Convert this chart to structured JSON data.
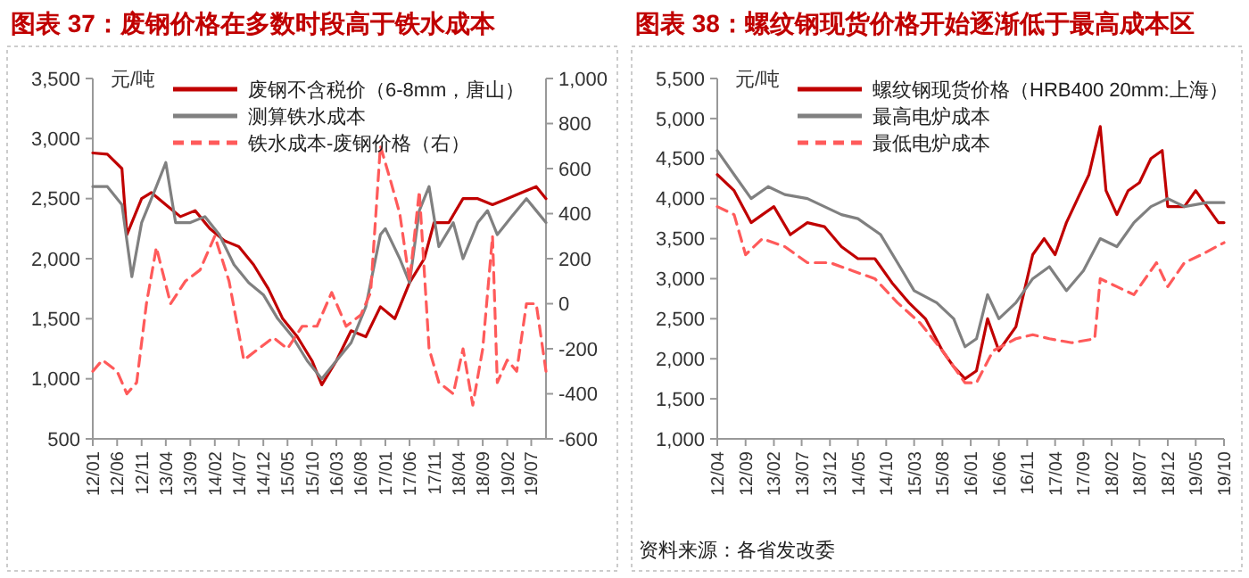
{
  "chart_data": [
    {
      "type": "line",
      "title": "图表 37：废钢价格在多数时段高于铁水成本",
      "ylabel": "元/吨",
      "legend": "top",
      "grid": false,
      "xlim": [
        "2012-01",
        "2019-10"
      ],
      "xticks": [
        {
          "value": "2012-01",
          "label": "12/01"
        },
        {
          "value": "2012-06",
          "label": "12/06"
        },
        {
          "value": "2012-11",
          "label": "12/11"
        },
        {
          "value": "2013-04",
          "label": "13/04"
        },
        {
          "value": "2013-09",
          "label": "13/09"
        },
        {
          "value": "2014-02",
          "label": "14/02"
        },
        {
          "value": "2014-07",
          "label": "14/07"
        },
        {
          "value": "2014-12",
          "label": "14/12"
        },
        {
          "value": "2015-05",
          "label": "15/05"
        },
        {
          "value": "2015-10",
          "label": "15/10"
        },
        {
          "value": "2016-03",
          "label": "16/03"
        },
        {
          "value": "2016-08",
          "label": "16/08"
        },
        {
          "value": "2017-01",
          "label": "17/01"
        },
        {
          "value": "2017-06",
          "label": "17/06"
        },
        {
          "value": "2017-11",
          "label": "17/11"
        },
        {
          "value": "2018-04",
          "label": "18/04"
        },
        {
          "value": "2018-09",
          "label": "18/09"
        },
        {
          "value": "2019-02",
          "label": "19/02"
        },
        {
          "value": "2019-07",
          "label": "19/07"
        }
      ],
      "ylim": [
        500,
        3500
      ],
      "yticks": [
        500,
        {
          "value": 1000,
          "label": "1,000"
        },
        {
          "value": 1500,
          "label": "1,500"
        },
        {
          "value": 2000,
          "label": "2,000"
        },
        {
          "value": 2500,
          "label": "2,500"
        },
        {
          "value": 3000,
          "label": "3,000"
        },
        {
          "value": 3500,
          "label": "3,500"
        }
      ],
      "y2lim": [
        -600,
        1000
      ],
      "y2ticks": [
        -600,
        -400,
        -200,
        0,
        200,
        400,
        600,
        800,
        {
          "value": 1000,
          "label": "1,000"
        }
      ],
      "series": [
        {
          "name": "废钢不含税价（6-8mm，唐山）",
          "color": "#c00000",
          "line_style": "solid",
          "x": [
            "2012-01",
            "2012-04",
            "2012-07",
            "2012-08",
            "2012-11",
            "2013-01",
            "2013-04",
            "2013-07",
            "2013-10",
            "2014-01",
            "2014-04",
            "2014-07",
            "2014-10",
            "2015-01",
            "2015-04",
            "2015-07",
            "2015-10",
            "2015-12",
            "2016-03",
            "2016-06",
            "2016-09",
            "2016-12",
            "2017-03",
            "2017-06",
            "2017-09",
            "2017-11",
            "2018-02",
            "2018-05",
            "2018-08",
            "2018-11",
            "2019-02",
            "2019-05",
            "2019-08",
            "2019-10"
          ],
          "values": [
            2880,
            2870,
            2750,
            2200,
            2500,
            2550,
            2450,
            2350,
            2400,
            2250,
            2150,
            2100,
            1950,
            1750,
            1500,
            1350,
            1150,
            950,
            1150,
            1400,
            1350,
            1600,
            1500,
            1800,
            2000,
            2300,
            2300,
            2500,
            2500,
            2450,
            2500,
            2550,
            2600,
            2500
          ]
        },
        {
          "name": "测算铁水成本",
          "color": "#808080",
          "line_style": "solid",
          "x": [
            "2012-01",
            "2012-04",
            "2012-07",
            "2012-09",
            "2012-11",
            "2013-02",
            "2013-04",
            "2013-06",
            "2013-09",
            "2013-12",
            "2014-03",
            "2014-06",
            "2014-09",
            "2014-12",
            "2015-03",
            "2015-06",
            "2015-09",
            "2015-12",
            "2016-03",
            "2016-06",
            "2016-09",
            "2016-12",
            "2017-01",
            "2017-04",
            "2017-06",
            "2017-08",
            "2017-10",
            "2017-12",
            "2018-03",
            "2018-05",
            "2018-08",
            "2018-10",
            "2018-12",
            "2019-03",
            "2019-06",
            "2019-08",
            "2019-10"
          ],
          "values": [
            2600,
            2600,
            2450,
            1850,
            2300,
            2600,
            2800,
            2300,
            2300,
            2350,
            2200,
            1950,
            1800,
            1700,
            1500,
            1350,
            1150,
            1000,
            1150,
            1300,
            1600,
            2200,
            2250,
            2000,
            1800,
            2400,
            2600,
            2100,
            2300,
            2000,
            2300,
            2400,
            2200,
            2350,
            2500,
            2400,
            2300
          ]
        },
        {
          "name": "铁水成本-废钢价格（右）",
          "color": "#ff5a5a",
          "line_style": "dashed",
          "axis": "y2",
          "x": [
            "2012-01",
            "2012-03",
            "2012-06",
            "2012-08",
            "2012-10",
            "2012-12",
            "2013-02",
            "2013-05",
            "2013-08",
            "2013-11",
            "2014-02",
            "2014-05",
            "2014-08",
            "2014-11",
            "2015-02",
            "2015-05",
            "2015-08",
            "2015-11",
            "2016-02",
            "2016-05",
            "2016-08",
            "2016-10",
            "2016-12",
            "2017-02",
            "2017-04",
            "2017-06",
            "2017-08",
            "2017-10",
            "2017-12",
            "2018-03",
            "2018-05",
            "2018-07",
            "2018-09",
            "2018-11",
            "2018-12",
            "2019-02",
            "2019-04",
            "2019-06",
            "2019-08",
            "2019-10"
          ],
          "values": [
            -300,
            -250,
            -300,
            -400,
            -350,
            0,
            250,
            0,
            100,
            150,
            300,
            100,
            -250,
            -200,
            -150,
            -200,
            -100,
            -100,
            50,
            -100,
            -50,
            50,
            700,
            550,
            400,
            100,
            500,
            -200,
            -350,
            -400,
            -200,
            -450,
            -200,
            300,
            -350,
            -250,
            -300,
            0,
            0,
            -300
          ]
        }
      ]
    },
    {
      "type": "line",
      "title": "图表 38：螺纹钢现货价格开始逐渐低于最高成本区",
      "ylabel": "元/吨",
      "legend": "top",
      "grid": false,
      "xlim": [
        "2012-04",
        "2019-10"
      ],
      "xticks": [
        {
          "value": "2012-04",
          "label": "12/04"
        },
        {
          "value": "2012-09",
          "label": "12/09"
        },
        {
          "value": "2013-02",
          "label": "13/02"
        },
        {
          "value": "2013-07",
          "label": "13/07"
        },
        {
          "value": "2013-12",
          "label": "13/12"
        },
        {
          "value": "2014-05",
          "label": "14/05"
        },
        {
          "value": "2014-10",
          "label": "14/10"
        },
        {
          "value": "2015-03",
          "label": "15/03"
        },
        {
          "value": "2015-08",
          "label": "15/08"
        },
        {
          "value": "2016-01",
          "label": "16/01"
        },
        {
          "value": "2016-06",
          "label": "16/06"
        },
        {
          "value": "2016-11",
          "label": "16/11"
        },
        {
          "value": "2017-04",
          "label": "17/04"
        },
        {
          "value": "2017-09",
          "label": "17/09"
        },
        {
          "value": "2018-02",
          "label": "18/02"
        },
        {
          "value": "2018-07",
          "label": "18/07"
        },
        {
          "value": "2018-12",
          "label": "18/12"
        },
        {
          "value": "2019-05",
          "label": "19/05"
        },
        {
          "value": "2019-10",
          "label": "19/10"
        }
      ],
      "ylim": [
        1000,
        5500
      ],
      "yticks": [
        {
          "value": 1000,
          "label": "1,000"
        },
        {
          "value": 1500,
          "label": "1,500"
        },
        {
          "value": 2000,
          "label": "2,000"
        },
        {
          "value": 2500,
          "label": "2,500"
        },
        {
          "value": 3000,
          "label": "3,000"
        },
        {
          "value": 3500,
          "label": "3,500"
        },
        {
          "value": 4000,
          "label": "4,000"
        },
        {
          "value": 4500,
          "label": "4,500"
        },
        {
          "value": 5000,
          "label": "5,000"
        },
        {
          "value": 5500,
          "label": "5,500"
        }
      ],
      "annotations": [
        "资料来源：各省发改委"
      ],
      "series": [
        {
          "name": "螺纹钢现货价格（HRB400 20mm:上海）",
          "color": "#c00000",
          "line_style": "solid",
          "x": [
            "2012-04",
            "2012-07",
            "2012-10",
            "2012-12",
            "2013-02",
            "2013-05",
            "2013-08",
            "2013-11",
            "2014-02",
            "2014-05",
            "2014-08",
            "2014-11",
            "2015-02",
            "2015-05",
            "2015-08",
            "2015-10",
            "2015-12",
            "2016-02",
            "2016-04",
            "2016-06",
            "2016-09",
            "2016-11",
            "2016-12",
            "2017-02",
            "2017-04",
            "2017-06",
            "2017-08",
            "2017-10",
            "2017-12",
            "2018-01",
            "2018-03",
            "2018-05",
            "2018-07",
            "2018-09",
            "2018-11",
            "2018-12",
            "2019-03",
            "2019-05",
            "2019-07",
            "2019-09",
            "2019-10"
          ],
          "values": [
            4300,
            4100,
            3700,
            3800,
            3900,
            3550,
            3700,
            3650,
            3400,
            3250,
            3250,
            2950,
            2700,
            2500,
            2100,
            1900,
            1750,
            1850,
            2500,
            2100,
            2400,
            3000,
            3300,
            3500,
            3300,
            3700,
            4000,
            4300,
            4900,
            4100,
            3800,
            4100,
            4200,
            4500,
            4600,
            3900,
            3900,
            4100,
            3900,
            3700,
            3700
          ]
        },
        {
          "name": "最高电炉成本",
          "color": "#808080",
          "line_style": "solid",
          "x": [
            "2012-04",
            "2012-07",
            "2012-10",
            "2013-01",
            "2013-04",
            "2013-08",
            "2013-11",
            "2014-02",
            "2014-05",
            "2014-09",
            "2014-12",
            "2015-03",
            "2015-07",
            "2015-10",
            "2015-12",
            "2016-02",
            "2016-04",
            "2016-06",
            "2016-09",
            "2016-12",
            "2017-03",
            "2017-06",
            "2017-09",
            "2017-12",
            "2018-03",
            "2018-06",
            "2018-09",
            "2018-12",
            "2019-03",
            "2019-07",
            "2019-10"
          ],
          "values": [
            4600,
            4300,
            4000,
            4150,
            4050,
            4000,
            3900,
            3800,
            3750,
            3550,
            3200,
            2850,
            2700,
            2500,
            2150,
            2250,
            2800,
            2500,
            2700,
            3000,
            3150,
            2850,
            3100,
            3500,
            3400,
            3700,
            3900,
            4000,
            3900,
            3950,
            3950
          ]
        },
        {
          "name": "最低电炉成本",
          "color": "#ff5a5a",
          "line_style": "dashed",
          "x": [
            "2012-04",
            "2012-07",
            "2012-09",
            "2012-12",
            "2013-04",
            "2013-08",
            "2013-12",
            "2014-04",
            "2014-08",
            "2014-12",
            "2015-04",
            "2015-08",
            "2015-12",
            "2016-02",
            "2016-05",
            "2016-09",
            "2016-12",
            "2017-03",
            "2017-07",
            "2017-11",
            "2017-12",
            "2018-03",
            "2018-06",
            "2018-10",
            "2018-12",
            "2019-03",
            "2019-06",
            "2019-10"
          ],
          "values": [
            3900,
            3800,
            3300,
            3500,
            3400,
            3200,
            3200,
            3100,
            3000,
            2700,
            2450,
            2100,
            1700,
            1700,
            2100,
            2250,
            2300,
            2250,
            2200,
            2250,
            3000,
            2900,
            2800,
            3200,
            2900,
            3200,
            3300,
            3450
          ]
        }
      ]
    }
  ]
}
